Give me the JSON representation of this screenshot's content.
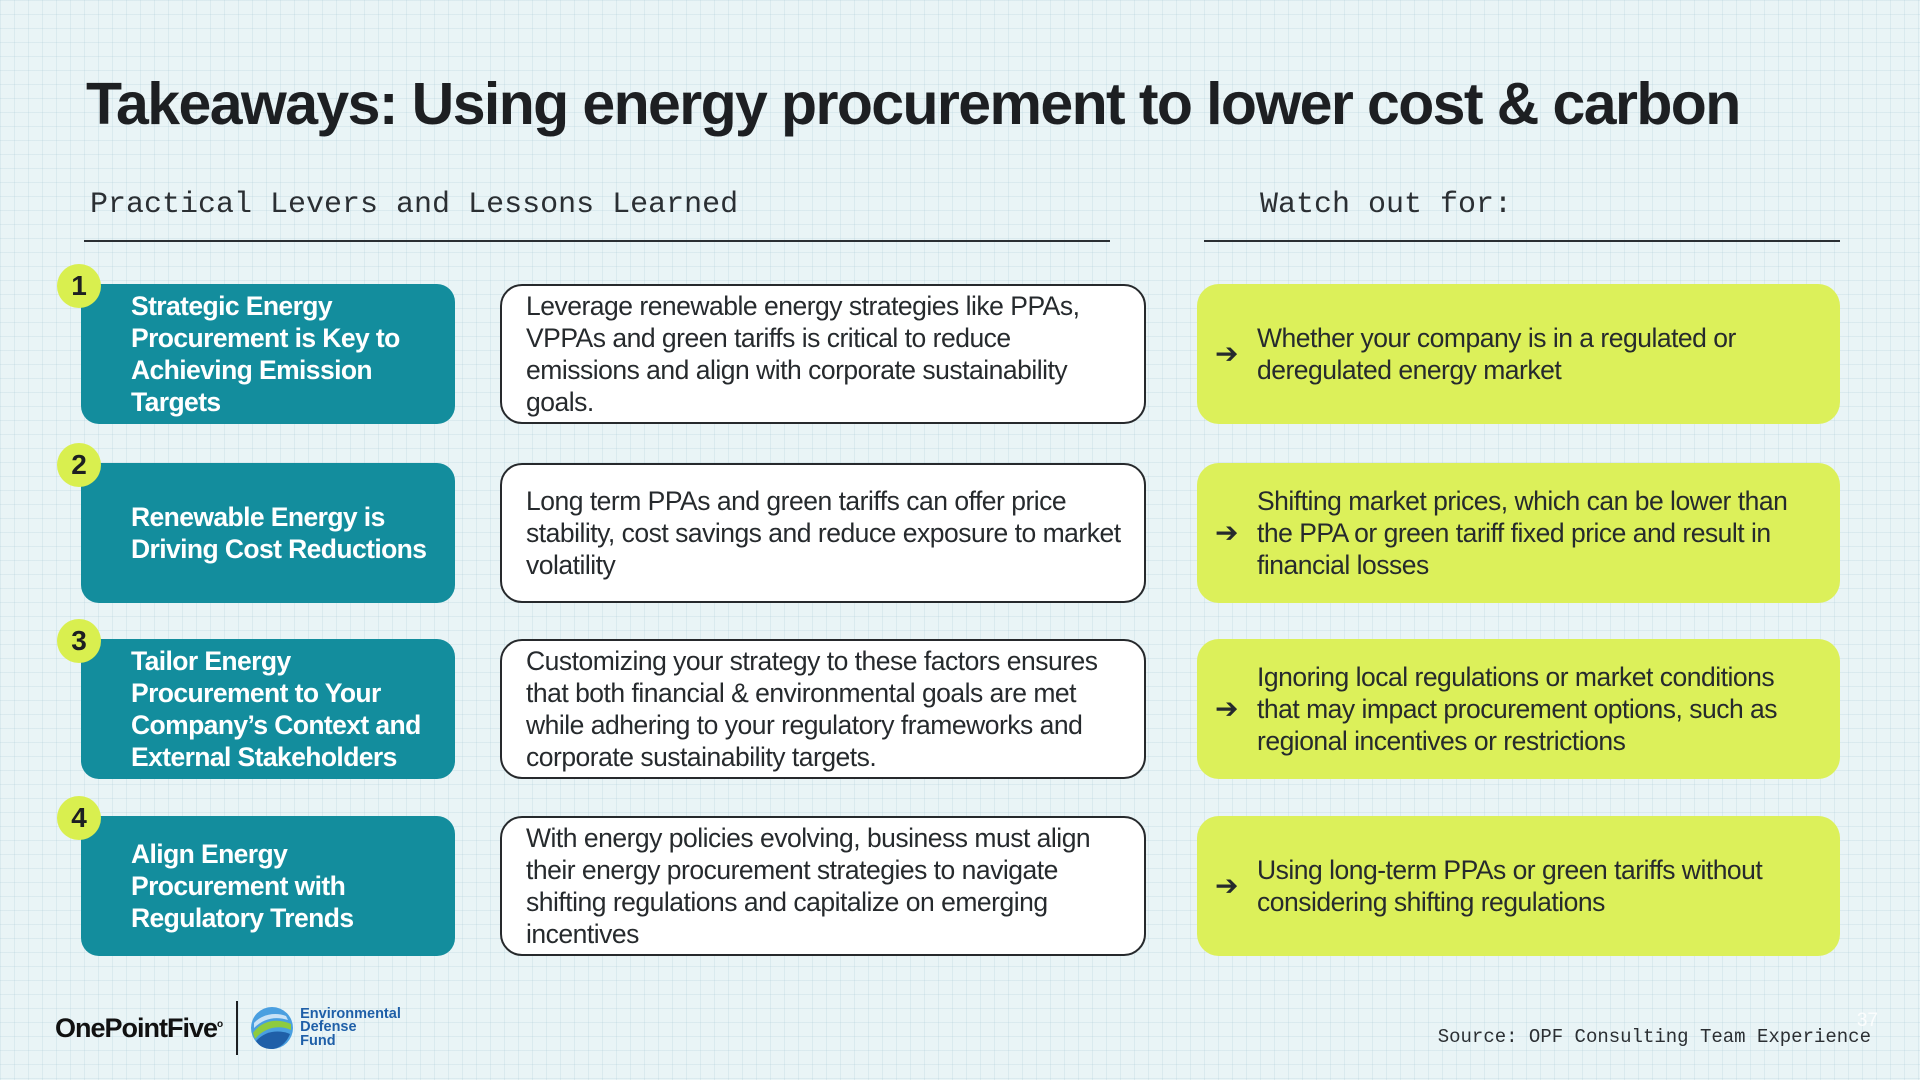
{
  "title": "Takeaways: Using energy procurement to lower cost & carbon",
  "left_heading": "Practical Levers and Lessons Learned",
  "right_heading": "Watch out for:",
  "arrow_glyph": "➔",
  "rows": [
    {
      "number": "1",
      "lever": "Strategic Energy Procurement is Key to Achieving Emission Targets",
      "lesson": "Leverage renewable energy strategies like PPAs, VPPAs and green tariffs is critical to reduce emissions and align with corporate sustainability goals.",
      "watch": "Whether your company is in a regulated or deregulated energy market"
    },
    {
      "number": "2",
      "lever": "Renewable Energy is Driving Cost Reductions",
      "lesson": "Long term PPAs and green tariffs can offer price stability, cost savings and reduce exposure to market volatility",
      "watch": "Shifting market prices, which can be lower than the PPA or green tariff fixed price and result in financial losses"
    },
    {
      "number": "3",
      "lever": "Tailor Energy Procurement to Your Company’s Context and External Stakeholders",
      "lesson": "Customizing your strategy to these factors ensures that both financial & environmental goals are met while adhering to your regulatory frameworks and corporate sustainability targets.",
      "watch": "Ignoring local regulations or market conditions that may impact procurement options, such as regional incentives or restrictions"
    },
    {
      "number": "4",
      "lever": "Align Energy Procurement with Regulatory Trends",
      "lesson": "With energy policies evolving, business must align their energy procurement strategies to navigate shifting regulations and capitalize on emerging incentives",
      "watch": "Using long-term PPAs or green tariffs without considering shifting regulations"
    }
  ],
  "footer": {
    "opf_logo": "OnePointFive",
    "edf_line1": "Environmental",
    "edf_line2": "Defense",
    "edf_line3": "Fund",
    "source": "Source: OPF Consulting Team Experience",
    "page_number": "37"
  },
  "colors": {
    "lever_bg": "#138d9d",
    "number_badge": "#d9ef4f",
    "watch_bg": "#dcf05a",
    "edf_blue": "#1f5fa8"
  }
}
